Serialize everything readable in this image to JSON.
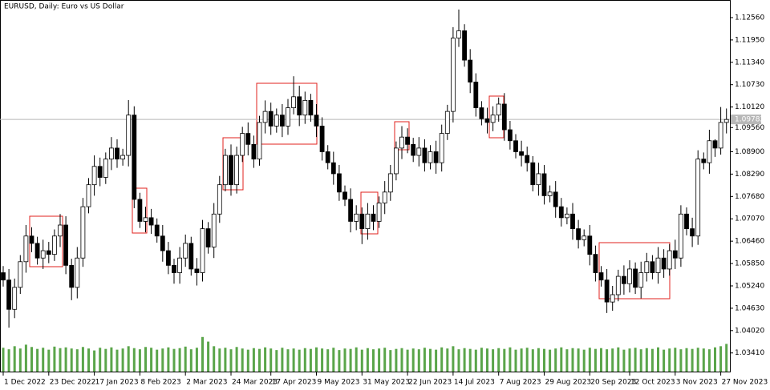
{
  "chart_data": {
    "type": "candlestick",
    "title": "EURUSD, Daily:  Euro vs US Dollar",
    "open": [
      1.056,
      1.054,
      1.046,
      1.052,
      1.059,
      1.066,
      1.064,
      1.06,
      1.062,
      1.061,
      1.066,
      1.069,
      1.058,
      1.052,
      1.06,
      1.074,
      1.08,
      1.085,
      1.082,
      1.087,
      1.09,
      1.087,
      1.088,
      1.099,
      1.076,
      1.07,
      1.071,
      1.069,
      1.066,
      1.062,
      1.058,
      1.056,
      1.06,
      1.064,
      1.057,
      1.056,
      1.068,
      1.063,
      1.072,
      1.08,
      1.088,
      1.08,
      1.088,
      1.094,
      1.091,
      1.087,
      1.097,
      1.1,
      1.096,
      1.099,
      1.096,
      1.101,
      1.104,
      1.099,
      1.103,
      1.099,
      1.096,
      1.089,
      1.086,
      1.083,
      1.078,
      1.076,
      1.07,
      1.072,
      1.068,
      1.072,
      1.07,
      1.075,
      1.078,
      1.083,
      1.09,
      1.093,
      1.091,
      1.088,
      1.09,
      1.086,
      1.089,
      1.086,
      1.094,
      1.1,
      1.12,
      1.122,
      1.114,
      1.108,
      1.101,
      1.098,
      1.097,
      1.099,
      1.102,
      1.095,
      1.092,
      1.089,
      1.088,
      1.086,
      1.08,
      1.083,
      1.077,
      1.078,
      1.074,
      1.071,
      1.072,
      1.068,
      1.065,
      1.066,
      1.061,
      1.056,
      1.054,
      1.048,
      1.05,
      1.055,
      1.053,
      1.057,
      1.052,
      1.056,
      1.059,
      1.056,
      1.06,
      1.057,
      1.062,
      1.06,
      1.072,
      1.068,
      1.066,
      1.087,
      1.086,
      1.092,
      1.09,
      1.097
    ],
    "high": [
      1.0578,
      1.057,
      1.0544,
      1.0608,
      1.069,
      1.0684,
      1.0658,
      1.065,
      1.0644,
      1.0678,
      1.072,
      1.0714,
      1.0598,
      1.063,
      1.0764,
      1.0818,
      1.088,
      1.0874,
      1.0888,
      1.093,
      1.0924,
      1.0898,
      1.1031,
      1.1014,
      1.0778,
      1.074,
      1.0734,
      1.0708,
      1.069,
      1.0644,
      1.0598,
      1.063,
      1.0664,
      1.0658,
      1.06,
      1.0704,
      1.0698,
      1.075,
      1.0824,
      1.0898,
      1.091,
      1.0904,
      1.0958,
      1.097,
      1.0934,
      1.0988,
      1.103,
      1.1024,
      1.1008,
      1.102,
      1.1034,
      1.1096,
      1.107,
      1.1054,
      1.1048,
      1.102,
      1.0984,
      1.0908,
      1.089,
      1.0854,
      1.0798,
      1.079,
      1.0744,
      1.0738,
      1.075,
      1.0744,
      1.0768,
      1.081,
      1.0854,
      1.0918,
      1.096,
      1.0954,
      1.0928,
      1.093,
      1.0924,
      1.0908,
      1.092,
      1.0964,
      1.1018,
      1.123,
      1.1278,
      1.1238,
      1.117,
      1.1104,
      1.1028,
      1.101,
      1.1014,
      1.1038,
      1.105,
      1.0974,
      1.0938,
      1.092,
      1.0904,
      1.0878,
      1.086,
      1.0854,
      1.0798,
      1.081,
      1.0764,
      1.0738,
      1.075,
      1.0704,
      1.0678,
      1.069,
      1.0634,
      1.0578,
      1.057,
      1.0524,
      1.0568,
      1.058,
      1.0594,
      1.0588,
      1.059,
      1.0614,
      1.0608,
      1.063,
      1.0624,
      1.0638,
      1.065,
      1.0744,
      1.0738,
      1.071,
      1.0894,
      1.0888,
      1.095,
      1.0924,
      1.1012,
      1.1008
    ],
    "low": [
      1.0522,
      1.041,
      1.0436,
      1.0502,
      1.056,
      1.0616,
      1.0582,
      1.057,
      1.0586,
      1.0592,
      1.063,
      1.0556,
      1.0485,
      1.049,
      1.0576,
      1.0722,
      1.077,
      1.0796,
      1.0802,
      1.084,
      1.0846,
      1.0852,
      1.085,
      1.0736,
      1.0682,
      1.067,
      1.0666,
      1.0642,
      1.059,
      1.0556,
      1.053,
      1.053,
      1.0576,
      1.0552,
      1.0525,
      1.0536,
      1.0612,
      1.06,
      1.0696,
      1.0782,
      1.077,
      1.0776,
      1.0862,
      1.088,
      1.0846,
      1.0852,
      1.094,
      1.0936,
      1.0942,
      1.093,
      1.0936,
      1.0992,
      1.096,
      1.0966,
      1.0972,
      1.093,
      1.0866,
      1.0842,
      1.08,
      1.0756,
      1.0742,
      1.067,
      1.0676,
      1.0638,
      1.065,
      1.0676,
      1.0682,
      1.072,
      1.0756,
      1.0812,
      1.087,
      1.0886,
      1.0862,
      1.085,
      1.0836,
      1.0842,
      1.083,
      1.0836,
      1.0922,
      1.097,
      1.1176,
      1.1122,
      1.105,
      1.0986,
      1.0962,
      1.094,
      1.0946,
      1.0972,
      1.092,
      1.0896,
      1.0872,
      1.085,
      1.0836,
      1.0782,
      1.077,
      1.0746,
      1.0752,
      1.071,
      1.0686,
      1.0692,
      1.065,
      1.0626,
      1.0632,
      1.058,
      1.0536,
      1.0522,
      1.045,
      1.0456,
      1.0482,
      1.05,
      1.0506,
      1.0502,
      1.049,
      1.0536,
      1.0542,
      1.053,
      1.0546,
      1.0552,
      1.057,
      1.0576,
      1.0662,
      1.063,
      1.0636,
      1.0842,
      1.083,
      1.0876,
      1.0882,
      1.094
    ],
    "close": [
      1.054,
      1.046,
      1.052,
      1.059,
      1.066,
      1.064,
      1.06,
      1.062,
      1.061,
      1.066,
      1.069,
      1.058,
      1.052,
      1.06,
      1.074,
      1.08,
      1.085,
      1.082,
      1.087,
      1.09,
      1.087,
      1.088,
      1.099,
      1.076,
      1.07,
      1.071,
      1.069,
      1.066,
      1.062,
      1.058,
      1.056,
      1.06,
      1.064,
      1.057,
      1.056,
      1.068,
      1.063,
      1.072,
      1.08,
      1.088,
      1.08,
      1.088,
      1.094,
      1.091,
      1.087,
      1.097,
      1.1,
      1.096,
      1.099,
      1.096,
      1.101,
      1.104,
      1.099,
      1.103,
      1.099,
      1.096,
      1.089,
      1.086,
      1.083,
      1.078,
      1.076,
      1.07,
      1.072,
      1.068,
      1.072,
      1.07,
      1.075,
      1.078,
      1.083,
      1.09,
      1.093,
      1.091,
      1.088,
      1.09,
      1.086,
      1.089,
      1.086,
      1.094,
      1.1,
      1.12,
      1.122,
      1.114,
      1.108,
      1.101,
      1.098,
      1.097,
      1.099,
      1.102,
      1.095,
      1.092,
      1.089,
      1.088,
      1.086,
      1.08,
      1.083,
      1.077,
      1.078,
      1.074,
      1.071,
      1.072,
      1.068,
      1.065,
      1.066,
      1.061,
      1.056,
      1.054,
      1.048,
      1.05,
      1.055,
      1.053,
      1.057,
      1.052,
      1.056,
      1.059,
      1.056,
      1.06,
      1.057,
      1.062,
      1.06,
      1.072,
      1.068,
      1.066,
      1.087,
      1.086,
      1.092,
      1.09,
      1.097,
      1.0978
    ],
    "volume": [
      62,
      58,
      66,
      60,
      70,
      64,
      59,
      62,
      57,
      65,
      61,
      63,
      60,
      58,
      64,
      60,
      55,
      62,
      59,
      63,
      57,
      60,
      66,
      61,
      58,
      64,
      62,
      57,
      60,
      63,
      59,
      61,
      65,
      58,
      62,
      90,
      78,
      66,
      60,
      62,
      58,
      64,
      60,
      57,
      61,
      59,
      63,
      60,
      56,
      62,
      58,
      60,
      57,
      61,
      59,
      63,
      60,
      58,
      62,
      56,
      60,
      59,
      63,
      57,
      61,
      58,
      60,
      62,
      56,
      59,
      61,
      57,
      60,
      58,
      62,
      59,
      57,
      63,
      60,
      66,
      58,
      61,
      59,
      57,
      62,
      60,
      58,
      61,
      59,
      63,
      57,
      60,
      62,
      58,
      61,
      59,
      57,
      60,
      63,
      58,
      61,
      60,
      57,
      62,
      59,
      61,
      58,
      60,
      63,
      57,
      60,
      62,
      58,
      61,
      59,
      63,
      57,
      60,
      62,
      58,
      61,
      59,
      62,
      60,
      58,
      63,
      66,
      72
    ],
    "vlim": [
      0,
      100
    ],
    "last_price": {
      "value": 1.09782,
      "label": "1.09782"
    },
    "ylim": [
      1.0288,
      1.1304
    ],
    "yticks": [
      {
        "value": 1.1256,
        "label": "1.12560"
      },
      {
        "value": 1.1195,
        "label": "1.11950"
      },
      {
        "value": 1.1134,
        "label": "1.11340"
      },
      {
        "value": 1.1073,
        "label": "1.10730"
      },
      {
        "value": 1.1012,
        "label": "1.10120"
      },
      {
        "value": 1.0956,
        "label": "1.09560"
      },
      {
        "value": 1.089,
        "label": "1.08900"
      },
      {
        "value": 1.0829,
        "label": "1.08290"
      },
      {
        "value": 1.0768,
        "label": "1.07680"
      },
      {
        "value": 1.0707,
        "label": "1.07070"
      },
      {
        "value": 1.0646,
        "label": "1.06460"
      },
      {
        "value": 1.0585,
        "label": "1.05850"
      },
      {
        "value": 1.0524,
        "label": "1.05240"
      },
      {
        "value": 1.0463,
        "label": "1.04630"
      },
      {
        "value": 1.0402,
        "label": "1.04020"
      },
      {
        "value": 1.0341,
        "label": "1.03410"
      }
    ],
    "xticks": [
      {
        "value": 0,
        "label": "1 Dec 2022"
      },
      {
        "value": 8,
        "label": "23 Dec 2022"
      },
      {
        "value": 16,
        "label": "17 Jan 2023"
      },
      {
        "value": 24,
        "label": "8 Feb 2023"
      },
      {
        "value": 32,
        "label": "2 Mar 2023"
      },
      {
        "value": 40,
        "label": "24 Mar 2023"
      },
      {
        "value": 47,
        "label": "17 Apr 2023"
      },
      {
        "value": 55,
        "label": "9 May 2023"
      },
      {
        "value": 63,
        "label": "31 May 2023"
      },
      {
        "value": 71,
        "label": "22 Jun 2023"
      },
      {
        "value": 79,
        "label": "14 Jul 2023"
      },
      {
        "value": 87,
        "label": "7 Aug 2023"
      },
      {
        "value": 95,
        "label": "29 Aug 2023"
      },
      {
        "value": 103,
        "label": "20 Sep 2023"
      },
      {
        "value": 110,
        "label": "12 Oct 2023"
      },
      {
        "value": 118,
        "label": "3 Nov 2023"
      },
      {
        "value": 126,
        "label": "27 Nov 2023"
      }
    ],
    "up_color": "#ffffff",
    "down_color": "#000000",
    "volume_color": "#5aa54a",
    "grid": false
  }
}
